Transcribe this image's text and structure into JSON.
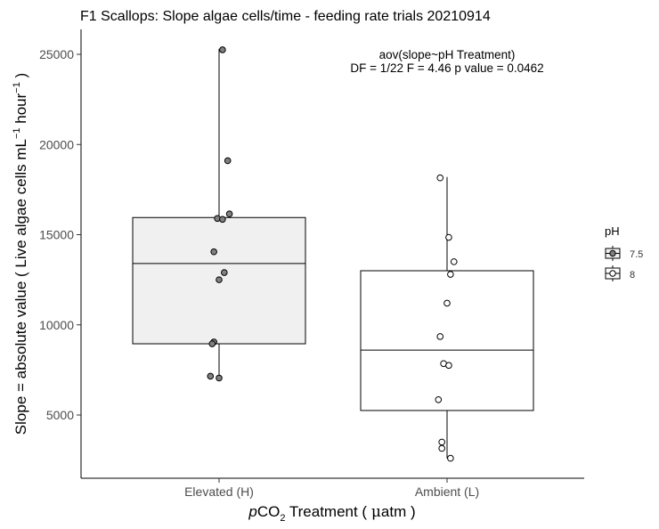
{
  "chart_data": {
    "type": "boxplot",
    "title": "F1 Scallops: Slope algae cells/time - feeding rate trials 20210914",
    "ylabel": {
      "main": "Slope = absolute value ( Live algae cells mL",
      "sup1": "−1",
      "mid": " hour",
      "sup2": "−1",
      "end": " )"
    },
    "xlabel": {
      "italic": "p",
      "main": "CO",
      "sub": "2",
      "rest": " Treatment ( ",
      "mu": "μ",
      "unit": "atm )"
    },
    "ylim": [
      2000,
      26000
    ],
    "yticks": [
      5000,
      10000,
      15000,
      20000,
      25000
    ],
    "ytick_labels": [
      "5000",
      "10000",
      "15000",
      "20000",
      "25000"
    ],
    "categories": [
      "Elevated (H)",
      "Ambient (L)"
    ],
    "annotation": {
      "line1": "aov(slope~pH Treatment)",
      "line2": "DF = 1/22 F = 4.46 p value = 0.0462"
    },
    "legend": {
      "title": "pH",
      "placement": "right",
      "entries": [
        "7.5",
        "8"
      ]
    },
    "colors": {
      "group_7_5_box": "#f0f0f0",
      "group_7_5_point": "#808080",
      "group_8_box": "#ffffff",
      "group_8_point": "#ffffff",
      "outline": "#000000"
    },
    "boxes": [
      {
        "category": "Elevated (H)",
        "ph": "7.5",
        "q1": 8950,
        "median": 13400,
        "q3": 15950,
        "whisker_low": 7050,
        "whisker_high": 25300
      },
      {
        "category": "Ambient (L)",
        "ph": "8",
        "q1": 5250,
        "median": 8600,
        "q3": 13000,
        "whisker_low": 2600,
        "whisker_high": 18200
      }
    ],
    "points": [
      {
        "category": "Elevated (H)",
        "ph": "7.5",
        "jitter": 0.02,
        "y": 25250
      },
      {
        "category": "Elevated (H)",
        "ph": "7.5",
        "jitter": 0.05,
        "y": 19100
      },
      {
        "category": "Elevated (H)",
        "ph": "7.5",
        "jitter": 0.06,
        "y": 16150
      },
      {
        "category": "Elevated (H)",
        "ph": "7.5",
        "jitter": -0.01,
        "y": 15900
      },
      {
        "category": "Elevated (H)",
        "ph": "7.5",
        "jitter": 0.02,
        "y": 15850
      },
      {
        "category": "Elevated (H)",
        "ph": "7.5",
        "jitter": -0.03,
        "y": 14050
      },
      {
        "category": "Elevated (H)",
        "ph": "7.5",
        "jitter": 0.03,
        "y": 12900
      },
      {
        "category": "Elevated (H)",
        "ph": "7.5",
        "jitter": 0.0,
        "y": 12500
      },
      {
        "category": "Elevated (H)",
        "ph": "7.5",
        "jitter": -0.03,
        "y": 9050
      },
      {
        "category": "Elevated (H)",
        "ph": "7.5",
        "jitter": -0.04,
        "y": 8950
      },
      {
        "category": "Elevated (H)",
        "ph": "7.5",
        "jitter": -0.05,
        "y": 7150
      },
      {
        "category": "Elevated (H)",
        "ph": "7.5",
        "jitter": 0.0,
        "y": 7050
      },
      {
        "category": "Ambient (L)",
        "ph": "8",
        "jitter": -0.04,
        "y": 18150
      },
      {
        "category": "Ambient (L)",
        "ph": "8",
        "jitter": 0.01,
        "y": 14850
      },
      {
        "category": "Ambient (L)",
        "ph": "8",
        "jitter": 0.04,
        "y": 13500
      },
      {
        "category": "Ambient (L)",
        "ph": "8",
        "jitter": 0.02,
        "y": 12800
      },
      {
        "category": "Ambient (L)",
        "ph": "8",
        "jitter": 0.0,
        "y": 11200
      },
      {
        "category": "Ambient (L)",
        "ph": "8",
        "jitter": -0.04,
        "y": 9350
      },
      {
        "category": "Ambient (L)",
        "ph": "8",
        "jitter": -0.02,
        "y": 7850
      },
      {
        "category": "Ambient (L)",
        "ph": "8",
        "jitter": 0.01,
        "y": 7750
      },
      {
        "category": "Ambient (L)",
        "ph": "8",
        "jitter": -0.05,
        "y": 5850
      },
      {
        "category": "Ambient (L)",
        "ph": "8",
        "jitter": -0.03,
        "y": 3500
      },
      {
        "category": "Ambient (L)",
        "ph": "8",
        "jitter": -0.03,
        "y": 3150
      },
      {
        "category": "Ambient (L)",
        "ph": "8",
        "jitter": 0.02,
        "y": 2600
      }
    ]
  }
}
